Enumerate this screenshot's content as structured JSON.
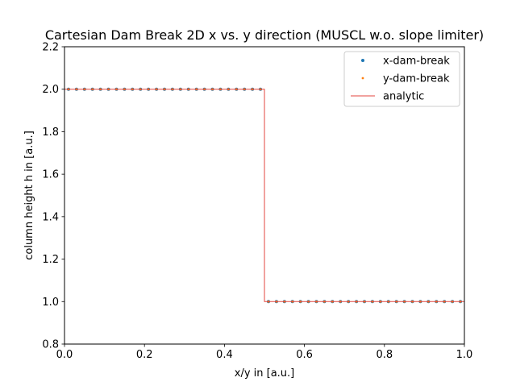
{
  "chart_data": {
    "type": "scatter",
    "title": "Cartesian Dam Break 2D x vs. y direction (MUSCL w.o. slope limiter)",
    "xlabel": "x/y in [a.u.]",
    "ylabel": "column height h in [a.u.]",
    "xlim": [
      0.0,
      1.0
    ],
    "ylim": [
      0.8,
      2.2
    ],
    "xticks": [
      0.0,
      0.2,
      0.4,
      0.6,
      0.8,
      1.0
    ],
    "xtick_labels": [
      "0.0",
      "0.2",
      "0.4",
      "0.6",
      "0.8",
      "1.0"
    ],
    "yticks": [
      0.8,
      1.0,
      1.2,
      1.4,
      1.6,
      1.8,
      2.0,
      2.2
    ],
    "ytick_labels": [
      "0.8",
      "1.0",
      "1.2",
      "1.4",
      "1.6",
      "1.8",
      "2.0",
      "2.2"
    ],
    "grid": false,
    "legend_position": "top-right",
    "series": [
      {
        "name": "x-dam-break",
        "kind": "points",
        "color": "#1f77b4",
        "x": [
          0.01,
          0.03,
          0.05,
          0.07,
          0.09,
          0.11,
          0.13,
          0.15,
          0.17,
          0.19,
          0.21,
          0.23,
          0.25,
          0.27,
          0.29,
          0.31,
          0.33,
          0.35,
          0.37,
          0.39,
          0.41,
          0.43,
          0.45,
          0.47,
          0.49,
          0.51,
          0.53,
          0.55,
          0.57,
          0.59,
          0.61,
          0.63,
          0.65,
          0.67,
          0.69,
          0.71,
          0.73,
          0.75,
          0.77,
          0.79,
          0.81,
          0.83,
          0.85,
          0.87,
          0.89,
          0.91,
          0.93,
          0.95,
          0.97,
          0.99
        ],
        "y": [
          2.0,
          2.0,
          2.0,
          2.0,
          2.0,
          2.0,
          2.0,
          2.0,
          2.0,
          2.0,
          2.0,
          2.0,
          2.0,
          2.0,
          2.0,
          2.0,
          2.0,
          2.0,
          2.0,
          2.0,
          2.0,
          2.0,
          2.0,
          2.0,
          2.0,
          1.0,
          1.0,
          1.0,
          1.0,
          1.0,
          1.0,
          1.0,
          1.0,
          1.0,
          1.0,
          1.0,
          1.0,
          1.0,
          1.0,
          1.0,
          1.0,
          1.0,
          1.0,
          1.0,
          1.0,
          1.0,
          1.0,
          1.0,
          1.0,
          1.0
        ]
      },
      {
        "name": "y-dam-break",
        "kind": "points",
        "color": "#ff7f0e",
        "x": [
          0.01,
          0.03,
          0.05,
          0.07,
          0.09,
          0.11,
          0.13,
          0.15,
          0.17,
          0.19,
          0.21,
          0.23,
          0.25,
          0.27,
          0.29,
          0.31,
          0.33,
          0.35,
          0.37,
          0.39,
          0.41,
          0.43,
          0.45,
          0.47,
          0.49,
          0.51,
          0.53,
          0.55,
          0.57,
          0.59,
          0.61,
          0.63,
          0.65,
          0.67,
          0.69,
          0.71,
          0.73,
          0.75,
          0.77,
          0.79,
          0.81,
          0.83,
          0.85,
          0.87,
          0.89,
          0.91,
          0.93,
          0.95,
          0.97,
          0.99
        ],
        "y": [
          2.0,
          2.0,
          2.0,
          2.0,
          2.0,
          2.0,
          2.0,
          2.0,
          2.0,
          2.0,
          2.0,
          2.0,
          2.0,
          2.0,
          2.0,
          2.0,
          2.0,
          2.0,
          2.0,
          2.0,
          2.0,
          2.0,
          2.0,
          2.0,
          2.0,
          1.0,
          1.0,
          1.0,
          1.0,
          1.0,
          1.0,
          1.0,
          1.0,
          1.0,
          1.0,
          1.0,
          1.0,
          1.0,
          1.0,
          1.0,
          1.0,
          1.0,
          1.0,
          1.0,
          1.0,
          1.0,
          1.0,
          1.0,
          1.0,
          1.0
        ]
      },
      {
        "name": "analytic",
        "kind": "line",
        "color": "#e3463f",
        "x": [
          0.0,
          0.5,
          0.5,
          1.0
        ],
        "y": [
          2.0,
          2.0,
          1.0,
          1.0
        ]
      }
    ]
  }
}
